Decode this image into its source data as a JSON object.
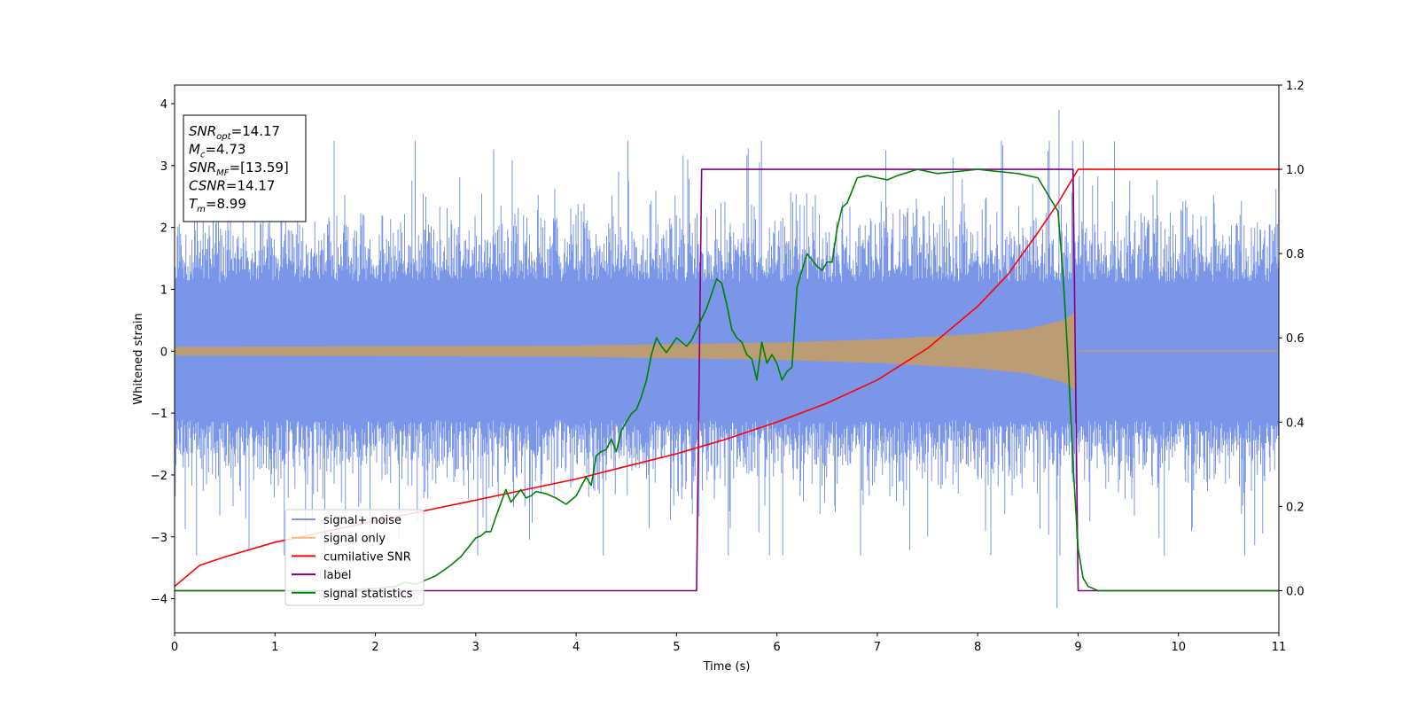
{
  "chart_data": {
    "type": "line",
    "xlabel": "Time (s)",
    "ylabel": "Whitened strain",
    "xlim": [
      0,
      11
    ],
    "ylim_left": [
      -4.55,
      4.3
    ],
    "ylim_right": [
      -0.1,
      1.2
    ],
    "x_ticks": [
      "0",
      "1",
      "2",
      "3",
      "4",
      "5",
      "6",
      "7",
      "8",
      "9",
      "10",
      "11"
    ],
    "y_ticks_left": [
      "4",
      "3",
      "2",
      "1",
      "0",
      "−1",
      "−2",
      "−3",
      "−4"
    ],
    "y_ticks_right": [
      "1.2",
      "1.0",
      "0.8",
      "0.6",
      "0.4",
      "0.2",
      "0.0"
    ],
    "info_box": [
      {
        "base": "SNR",
        "sub": "opt",
        "value": "=14.17"
      },
      {
        "base": "M",
        "sub": "c",
        "value": "=4.73"
      },
      {
        "base": "SNR",
        "sub": "MF",
        "value": "=[13.59]"
      },
      {
        "base": "CSNR",
        "sub": "",
        "value": "=14.17"
      },
      {
        "base": "T",
        "sub": "m",
        "value": "=8.99"
      }
    ],
    "legend": {
      "placement": "lower-left",
      "entries": [
        "signal+ noise",
        "signal only",
        "cumilative SNR",
        "label",
        "signal statistics"
      ]
    },
    "colors": {
      "signal_noise": "#7b96e8",
      "signal_only": "#f5b97a",
      "signal_overlap": "#bc9c74",
      "cumulative_snr": "#ff0000",
      "label": "#800080",
      "signal_statistics": "#008000"
    },
    "series": [
      {
        "name": "signal+ noise",
        "axis": "left",
        "noise_band": {
          "typical_abs": 1.8,
          "peak_max": 3.9,
          "peak_min": -4.15
        }
      },
      {
        "name": "signal only",
        "axis": "left",
        "envelope": {
          "t": [
            0,
            4,
            6,
            7,
            8,
            8.5,
            8.85,
            8.99,
            9.0,
            11
          ],
          "amp": [
            0.07,
            0.09,
            0.14,
            0.19,
            0.28,
            0.36,
            0.5,
            0.65,
            0.0,
            0.0
          ]
        }
      },
      {
        "name": "cumilative SNR",
        "axis": "right",
        "x": [
          0,
          0.25,
          0.5,
          1,
          1.5,
          2,
          2.5,
          3,
          3.5,
          4,
          4.5,
          5,
          5.5,
          6,
          6.5,
          7,
          7.5,
          8,
          8.3,
          8.6,
          8.8,
          8.9,
          8.95,
          9.0,
          11
        ],
        "y": [
          0.01,
          0.06,
          0.08,
          0.115,
          0.14,
          0.165,
          0.19,
          0.215,
          0.24,
          0.265,
          0.295,
          0.325,
          0.36,
          0.4,
          0.445,
          0.5,
          0.575,
          0.675,
          0.75,
          0.85,
          0.92,
          0.96,
          0.98,
          1.0,
          1.0
        ]
      },
      {
        "name": "label",
        "axis": "right",
        "x": [
          0,
          5.2,
          5.25,
          8.95,
          9.0,
          11
        ],
        "y": [
          0,
          0,
          1,
          1,
          0,
          0
        ]
      },
      {
        "name": "signal statistics",
        "axis": "right",
        "x": [
          0,
          1.5,
          2,
          2.2,
          2.3,
          2.4,
          2.6,
          2.75,
          2.85,
          2.95,
          3.0,
          3.05,
          3.1,
          3.15,
          3.2,
          3.3,
          3.35,
          3.4,
          3.45,
          3.5,
          3.55,
          3.6,
          3.7,
          3.8,
          3.9,
          4.0,
          4.1,
          4.15,
          4.2,
          4.25,
          4.3,
          4.35,
          4.4,
          4.45,
          4.5,
          4.55,
          4.6,
          4.65,
          4.7,
          4.75,
          4.8,
          4.85,
          4.9,
          5.0,
          5.1,
          5.15,
          5.2,
          5.3,
          5.4,
          5.45,
          5.5,
          5.55,
          5.6,
          5.65,
          5.7,
          5.75,
          5.8,
          5.85,
          5.9,
          5.95,
          6.0,
          6.05,
          6.1,
          6.15,
          6.2,
          6.3,
          6.4,
          6.45,
          6.5,
          6.55,
          6.6,
          6.65,
          6.7,
          6.8,
          6.9,
          7.0,
          7.1,
          7.2,
          7.4,
          7.6,
          7.8,
          8.0,
          8.2,
          8.4,
          8.6,
          8.8,
          8.85,
          8.9,
          8.95,
          9.0,
          9.05,
          9.1,
          9.2,
          11
        ],
        "y": [
          0.0,
          0.0,
          0.005,
          0.01,
          0.02,
          0.015,
          0.035,
          0.06,
          0.08,
          0.11,
          0.125,
          0.13,
          0.14,
          0.14,
          0.175,
          0.24,
          0.21,
          0.225,
          0.24,
          0.22,
          0.225,
          0.235,
          0.23,
          0.22,
          0.205,
          0.225,
          0.27,
          0.25,
          0.32,
          0.33,
          0.335,
          0.36,
          0.33,
          0.38,
          0.4,
          0.42,
          0.43,
          0.46,
          0.5,
          0.56,
          0.6,
          0.58,
          0.565,
          0.6,
          0.58,
          0.595,
          0.62,
          0.67,
          0.74,
          0.73,
          0.68,
          0.62,
          0.6,
          0.59,
          0.56,
          0.55,
          0.5,
          0.59,
          0.54,
          0.56,
          0.54,
          0.5,
          0.52,
          0.53,
          0.72,
          0.8,
          0.77,
          0.76,
          0.78,
          0.78,
          0.86,
          0.91,
          0.92,
          0.98,
          0.985,
          0.98,
          0.975,
          0.985,
          1.0,
          0.99,
          0.995,
          1.0,
          0.995,
          0.99,
          0.98,
          0.9,
          0.75,
          0.55,
          0.3,
          0.1,
          0.03,
          0.01,
          0.0,
          0.0
        ]
      }
    ]
  }
}
